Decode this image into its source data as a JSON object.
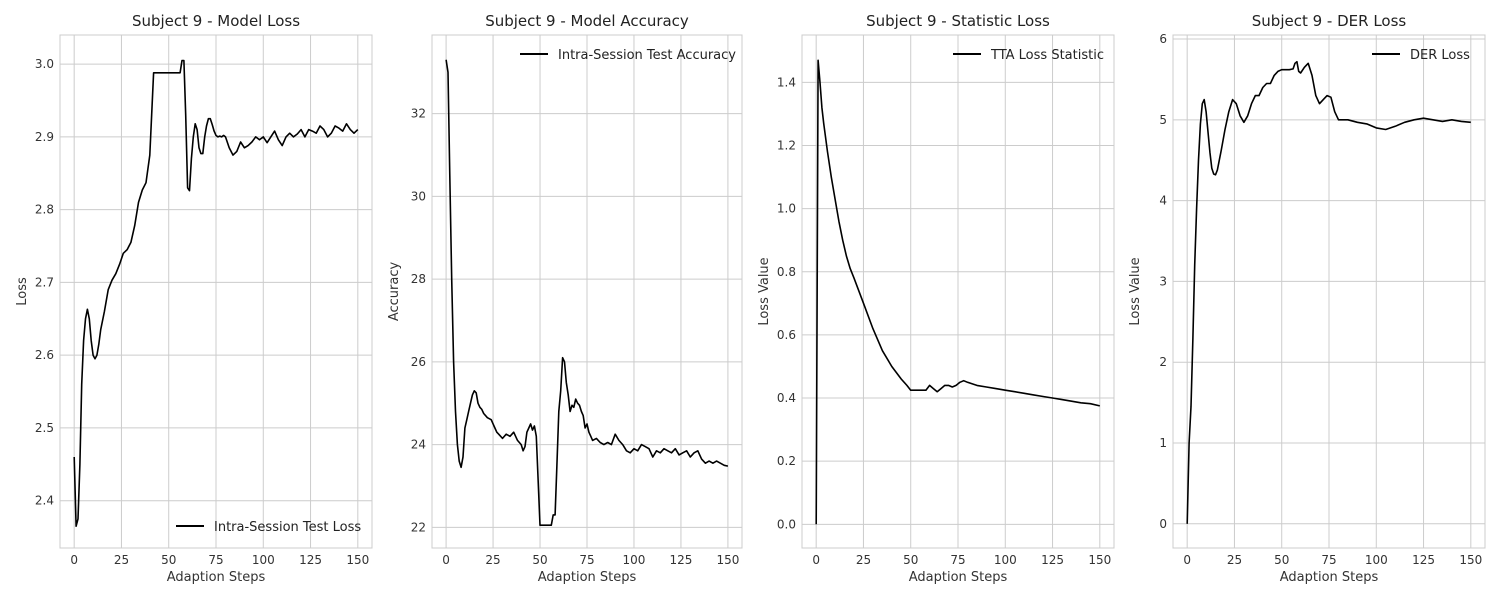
{
  "colors": {
    "line": "#000000",
    "grid": "#cccccc",
    "frame": "#cccccc",
    "background": "#ffffff"
  },
  "chart_data": [
    {
      "type": "line",
      "title": "Subject 9 - Model Loss",
      "xlabel": "Adaption Steps",
      "ylabel": "Loss",
      "xlim": [
        -7.5,
        157.5
      ],
      "ylim": [
        2.335,
        3.04
      ],
      "xticks": [
        0,
        25,
        50,
        75,
        100,
        125,
        150
      ],
      "yticks": [
        2.4,
        2.5,
        2.6,
        2.7,
        2.8,
        2.9,
        3.0
      ],
      "tick_decimals": 1,
      "grid": true,
      "legend_position": "lower right",
      "series": [
        {
          "name": "Intra-Session Test Loss",
          "x": [
            0,
            1,
            2,
            3,
            4,
            5,
            6,
            7,
            8,
            9,
            10,
            11,
            12,
            13,
            14,
            16,
            18,
            20,
            22,
            24,
            26,
            28,
            30,
            32,
            34,
            36,
            38,
            40,
            42,
            44,
            46,
            47,
            48,
            49,
            50,
            52,
            54,
            56,
            57,
            58,
            59,
            60,
            61,
            62,
            63,
            64,
            65,
            66,
            67,
            68,
            69,
            70,
            71,
            72,
            73,
            74,
            75,
            76,
            77,
            78,
            79,
            80,
            82,
            84,
            86,
            88,
            90,
            92,
            94,
            96,
            98,
            100,
            102,
            104,
            106,
            108,
            110,
            112,
            114,
            116,
            118,
            120,
            122,
            124,
            126,
            128,
            130,
            132,
            134,
            136,
            138,
            140,
            142,
            144,
            146,
            148,
            150
          ],
          "y": [
            2.46,
            2.365,
            2.375,
            2.45,
            2.56,
            2.62,
            2.65,
            2.663,
            2.65,
            2.62,
            2.6,
            2.595,
            2.6,
            2.615,
            2.635,
            2.66,
            2.69,
            2.703,
            2.712,
            2.725,
            2.74,
            2.745,
            2.755,
            2.778,
            2.81,
            2.827,
            2.837,
            2.875,
            2.988,
            2.988,
            2.988,
            2.988,
            2.988,
            2.988,
            2.988,
            2.988,
            2.988,
            2.988,
            3.005,
            3.005,
            2.93,
            2.83,
            2.826,
            2.87,
            2.9,
            2.918,
            2.91,
            2.885,
            2.877,
            2.877,
            2.9,
            2.915,
            2.925,
            2.925,
            2.917,
            2.908,
            2.902,
            2.9,
            2.901,
            2.9,
            2.902,
            2.9,
            2.885,
            2.875,
            2.88,
            2.893,
            2.885,
            2.888,
            2.893,
            2.9,
            2.896,
            2.9,
            2.892,
            2.9,
            2.908,
            2.896,
            2.888,
            2.9,
            2.905,
            2.9,
            2.904,
            2.91,
            2.9,
            2.91,
            2.908,
            2.905,
            2.915,
            2.91,
            2.9,
            2.905,
            2.915,
            2.912,
            2.908,
            2.918,
            2.91,
            2.905,
            2.91
          ]
        }
      ]
    },
    {
      "type": "line",
      "title": "Subject 9 - Model Accuracy",
      "xlabel": "Adaption Steps",
      "ylabel": "Accuracy",
      "xlim": [
        -7.5,
        157.5
      ],
      "ylim": [
        21.5,
        33.9
      ],
      "xticks": [
        0,
        25,
        50,
        75,
        100,
        125,
        150
      ],
      "yticks": [
        22,
        24,
        26,
        28,
        30,
        32
      ],
      "tick_decimals": 0,
      "grid": true,
      "legend_position": "upper right",
      "series": [
        {
          "name": "Intra-Session Test Accuracy",
          "x": [
            0,
            1,
            2,
            3,
            4,
            5,
            6,
            7,
            8,
            9,
            10,
            11,
            12,
            13,
            14,
            15,
            16,
            17,
            18,
            19,
            20,
            22,
            24,
            26,
            27,
            28,
            30,
            32,
            34,
            36,
            38,
            40,
            41,
            42,
            43,
            44,
            45,
            46,
            47,
            48,
            49,
            50,
            51,
            52,
            54,
            56,
            57,
            58,
            59,
            60,
            61,
            62,
            63,
            64,
            65,
            66,
            67,
            68,
            69,
            70,
            71,
            72,
            73,
            74,
            75,
            76,
            77,
            78,
            80,
            82,
            84,
            86,
            88,
            90,
            92,
            94,
            96,
            98,
            100,
            102,
            104,
            106,
            108,
            110,
            112,
            114,
            116,
            118,
            120,
            122,
            124,
            126,
            128,
            130,
            132,
            134,
            136,
            138,
            140,
            142,
            144,
            146,
            148,
            150
          ],
          "y": [
            33.3,
            33.0,
            30.5,
            28.0,
            26.0,
            24.8,
            24.0,
            23.6,
            23.45,
            23.7,
            24.4,
            24.6,
            24.8,
            25.0,
            25.2,
            25.3,
            25.25,
            25.0,
            24.9,
            24.85,
            24.75,
            24.65,
            24.6,
            24.4,
            24.3,
            24.25,
            24.15,
            24.25,
            24.2,
            24.3,
            24.1,
            24.0,
            23.85,
            23.95,
            24.3,
            24.4,
            24.5,
            24.35,
            24.45,
            24.2,
            23.1,
            22.05,
            22.05,
            22.05,
            22.05,
            22.05,
            22.3,
            22.3,
            23.5,
            24.8,
            25.3,
            26.1,
            26.0,
            25.5,
            25.2,
            24.8,
            24.95,
            24.9,
            25.1,
            25.0,
            24.95,
            24.8,
            24.7,
            24.4,
            24.5,
            24.3,
            24.2,
            24.1,
            24.15,
            24.05,
            24.0,
            24.05,
            24.0,
            24.25,
            24.1,
            24.0,
            23.85,
            23.8,
            23.9,
            23.85,
            24.0,
            23.95,
            23.9,
            23.7,
            23.85,
            23.8,
            23.9,
            23.85,
            23.8,
            23.9,
            23.75,
            23.8,
            23.85,
            23.7,
            23.8,
            23.85,
            23.65,
            23.55,
            23.6,
            23.55,
            23.6,
            23.55,
            23.5,
            23.48
          ]
        }
      ]
    },
    {
      "type": "line",
      "title": "Subject 9 - Statistic Loss",
      "xlabel": "Adaption Steps",
      "ylabel": "Loss Value",
      "xlim": [
        -7.5,
        157.5
      ],
      "ylim": [
        -0.075,
        1.55
      ],
      "xticks": [
        0,
        25,
        50,
        75,
        100,
        125,
        150
      ],
      "yticks": [
        0.0,
        0.2,
        0.4,
        0.6,
        0.8,
        1.0,
        1.2,
        1.4
      ],
      "tick_decimals": 1,
      "grid": true,
      "legend_position": "upper right",
      "series": [
        {
          "name": "TTA Loss Statistic",
          "x": [
            0,
            1,
            2,
            3,
            4,
            6,
            8,
            10,
            12,
            14,
            16,
            18,
            20,
            25,
            30,
            35,
            40,
            45,
            48,
            50,
            52,
            54,
            56,
            58,
            60,
            62,
            64,
            66,
            68,
            70,
            72,
            74,
            76,
            78,
            80,
            85,
            90,
            95,
            100,
            105,
            110,
            115,
            120,
            125,
            130,
            135,
            140,
            145,
            150
          ],
          "y": [
            0.0,
            1.47,
            1.4,
            1.32,
            1.27,
            1.18,
            1.1,
            1.03,
            0.96,
            0.9,
            0.85,
            0.81,
            0.78,
            0.7,
            0.62,
            0.55,
            0.5,
            0.46,
            0.44,
            0.425,
            0.425,
            0.425,
            0.425,
            0.425,
            0.44,
            0.43,
            0.42,
            0.43,
            0.44,
            0.44,
            0.435,
            0.44,
            0.45,
            0.455,
            0.45,
            0.44,
            0.435,
            0.43,
            0.425,
            0.42,
            0.415,
            0.41,
            0.405,
            0.4,
            0.395,
            0.39,
            0.385,
            0.382,
            0.375
          ]
        }
      ]
    },
    {
      "type": "line",
      "title": "Subject 9 - DER Loss",
      "xlabel": "Adaption Steps",
      "ylabel": "Loss Value",
      "xlim": [
        -7.5,
        157.5
      ],
      "ylim": [
        -0.3,
        6.05
      ],
      "xticks": [
        0,
        25,
        50,
        75,
        100,
        125,
        150
      ],
      "yticks": [
        0,
        1,
        2,
        3,
        4,
        5,
        6
      ],
      "tick_decimals": 0,
      "grid": true,
      "legend_position": "upper right",
      "series": [
        {
          "name": "DER Loss",
          "x": [
            0,
            1,
            2,
            3,
            4,
            5,
            6,
            7,
            8,
            9,
            10,
            11,
            12,
            13,
            14,
            15,
            16,
            17,
            18,
            19,
            20,
            22,
            24,
            26,
            28,
            30,
            32,
            34,
            36,
            38,
            40,
            42,
            44,
            46,
            48,
            50,
            52,
            54,
            56,
            57,
            58,
            59,
            60,
            62,
            64,
            66,
            68,
            70,
            72,
            74,
            76,
            78,
            80,
            85,
            90,
            95,
            100,
            105,
            110,
            115,
            120,
            125,
            130,
            135,
            140,
            145,
            150
          ],
          "y": [
            0.0,
            1.0,
            1.45,
            2.3,
            3.2,
            3.9,
            4.5,
            4.95,
            5.2,
            5.25,
            5.1,
            4.85,
            4.6,
            4.4,
            4.33,
            4.32,
            4.38,
            4.5,
            4.62,
            4.75,
            4.88,
            5.1,
            5.25,
            5.2,
            5.05,
            4.97,
            5.05,
            5.2,
            5.3,
            5.3,
            5.4,
            5.45,
            5.45,
            5.55,
            5.6,
            5.62,
            5.62,
            5.62,
            5.63,
            5.7,
            5.72,
            5.6,
            5.58,
            5.65,
            5.7,
            5.55,
            5.3,
            5.2,
            5.25,
            5.3,
            5.28,
            5.1,
            5.0,
            5.0,
            4.97,
            4.95,
            4.9,
            4.88,
            4.92,
            4.97,
            5.0,
            5.02,
            5.0,
            4.98,
            5.0,
            4.98,
            4.97
          ]
        }
      ]
    }
  ]
}
